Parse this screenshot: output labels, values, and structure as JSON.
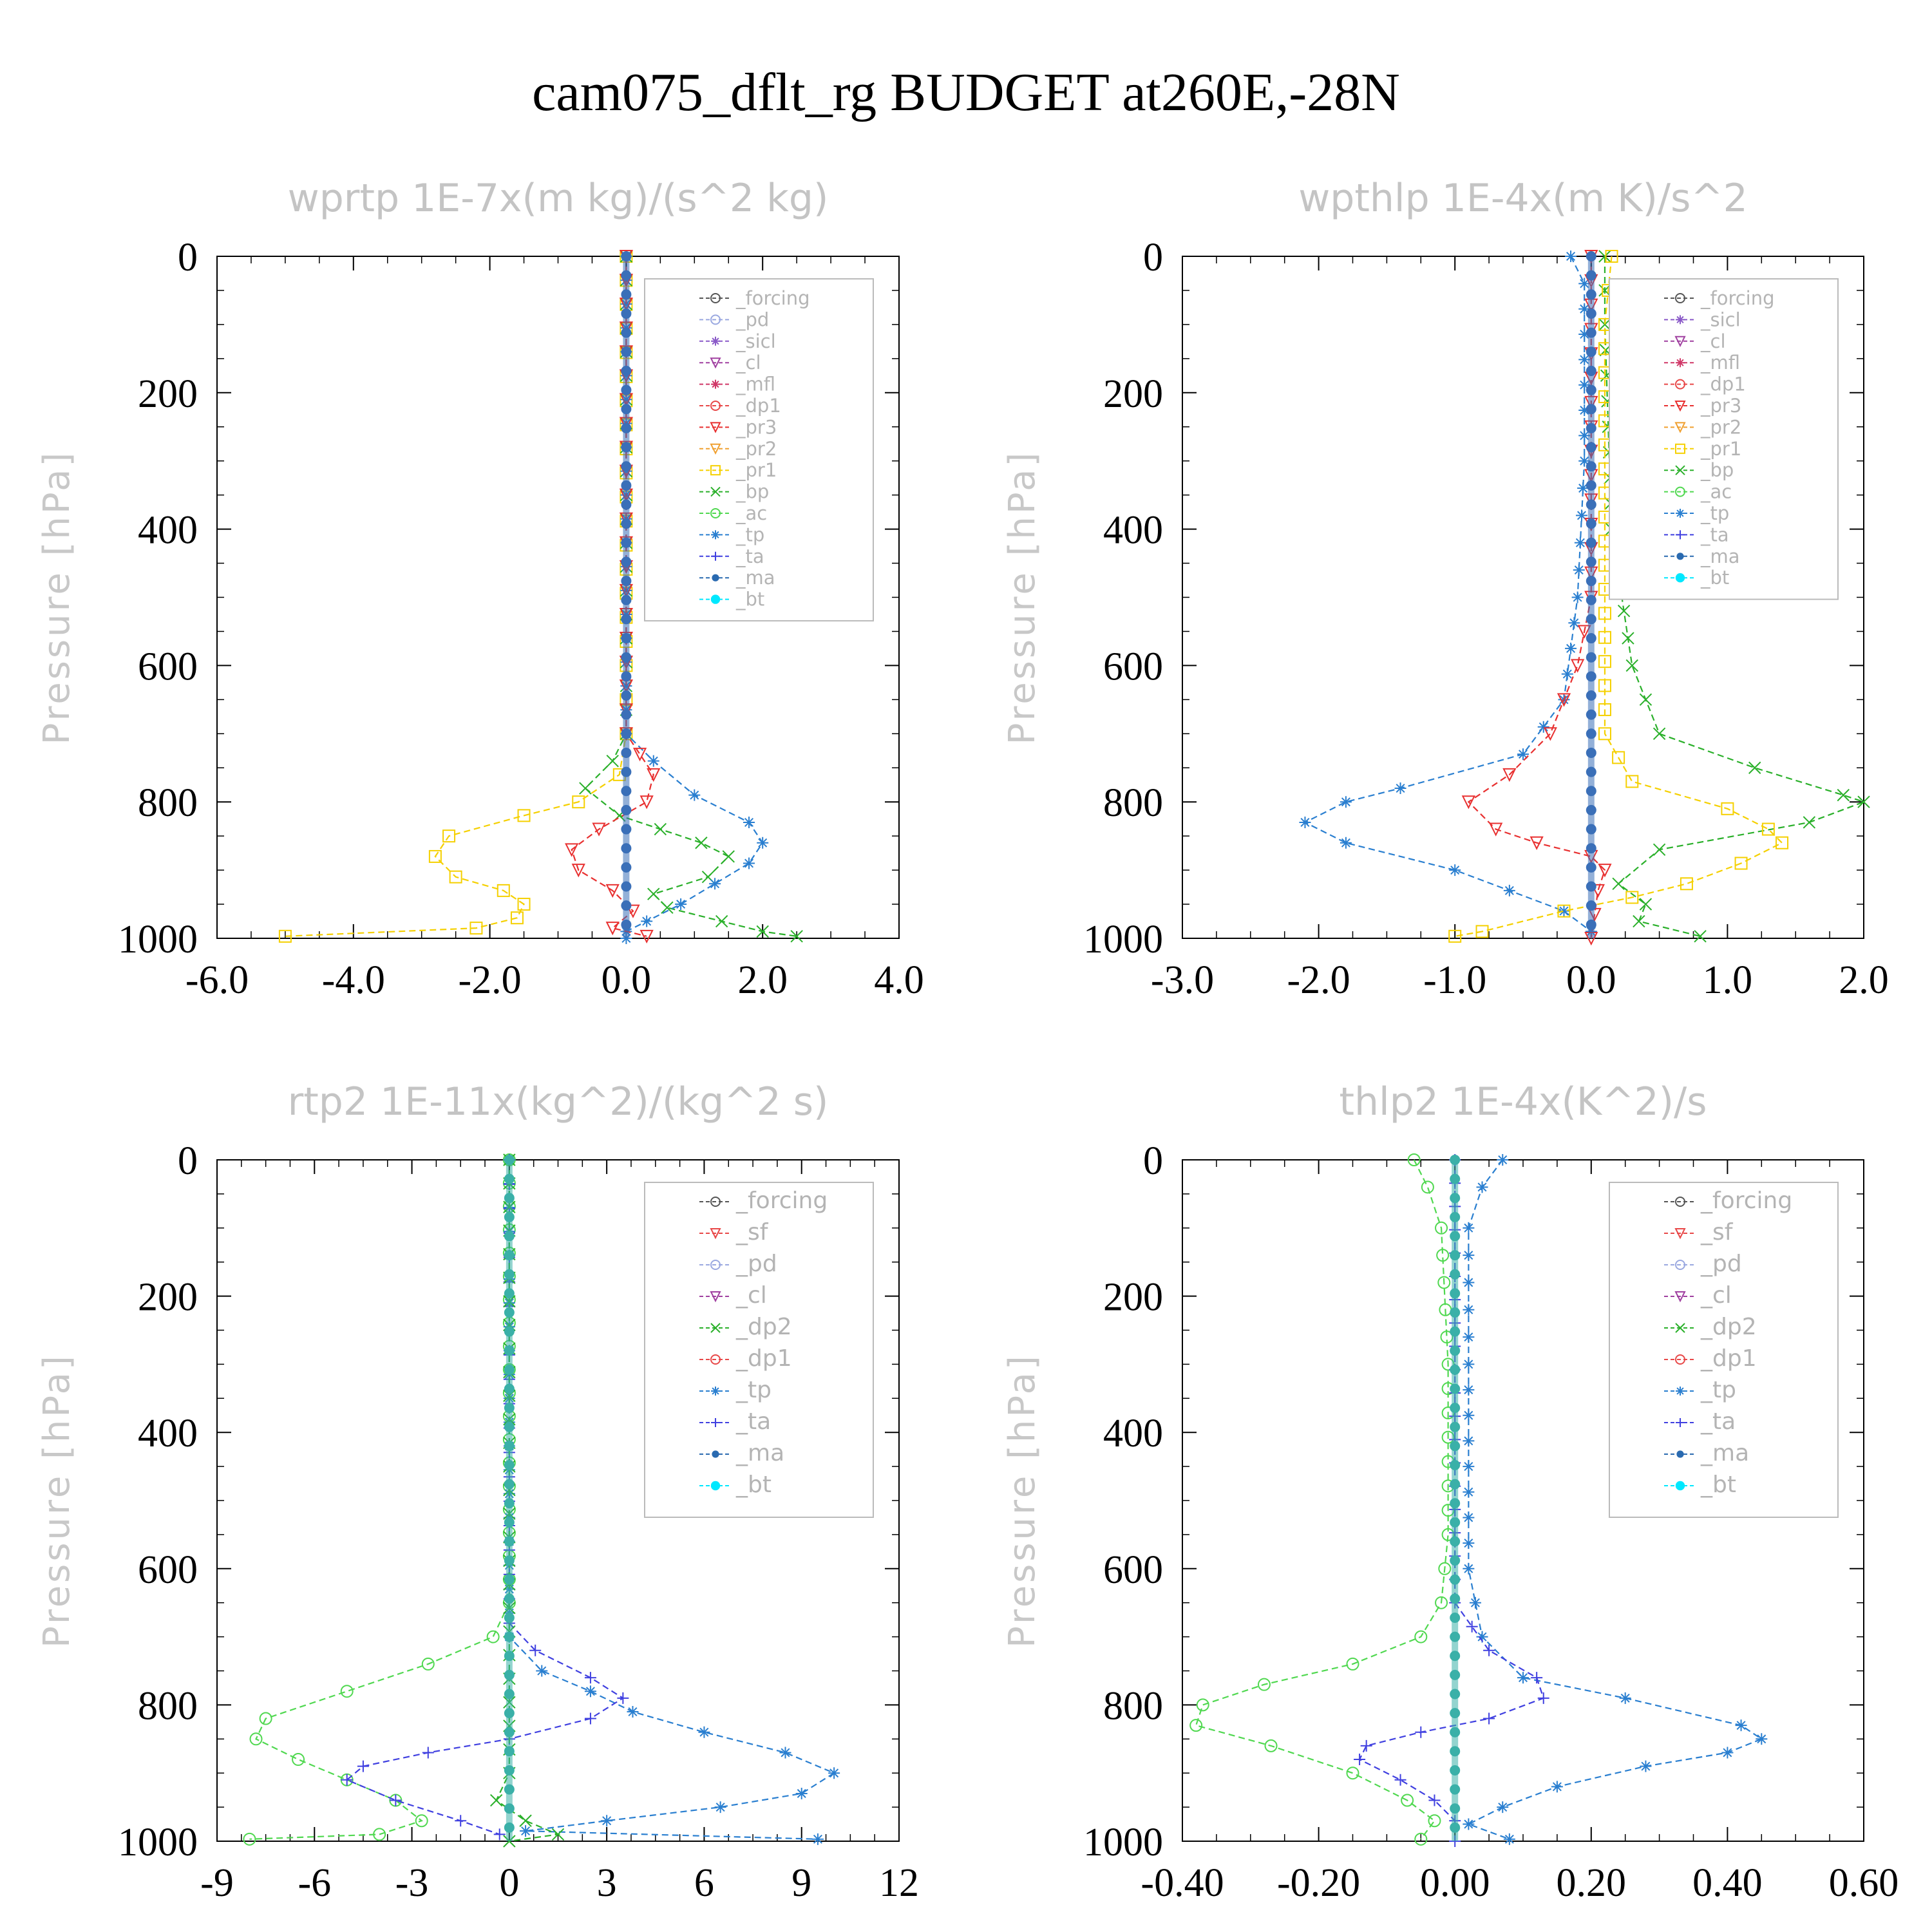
{
  "title": "cam075_dflt_rg  BUDGET at260E,-28N",
  "chart_data": [
    {
      "type": "line",
      "title": "wprtp  1E-7x(m kg)/(s^2 kg)",
      "ylabel": "Pressure [hPa]",
      "xlabel": "",
      "xlim": [
        -6.0,
        4.0
      ],
      "ylim": [
        1000,
        0
      ],
      "xticks": [
        "-6.0",
        "-4.0",
        "-2.0",
        "0.0",
        "2.0",
        "4.0"
      ],
      "yticks": [
        "0",
        "200",
        "400",
        "600",
        "800",
        "1000"
      ],
      "legend_position": "top-right",
      "legend": [
        "_forcing",
        "_pd",
        "_sicl",
        "_cl",
        "_mfl",
        "_dp1",
        "_pr3",
        "_pr2",
        "_pr1",
        "_bp",
        "_ac",
        "_tp",
        "_ta",
        "_ma",
        "_bt"
      ],
      "series": [
        {
          "name": "_pr1",
          "color": "#f5d000",
          "marker": "square",
          "points": [
            [
              0,
              0
            ],
            [
              0,
              600
            ],
            [
              0,
              700
            ],
            [
              -0.1,
              760
            ],
            [
              -0.7,
              800
            ],
            [
              -1.5,
              820
            ],
            [
              -2.6,
              850
            ],
            [
              -2.8,
              880
            ],
            [
              -2.5,
              910
            ],
            [
              -1.8,
              930
            ],
            [
              -1.5,
              950
            ],
            [
              -1.6,
              970
            ],
            [
              -2.2,
              985
            ],
            [
              -5.0,
              997
            ]
          ]
        },
        {
          "name": "_bp",
          "color": "#2ab02a",
          "marker": "x",
          "points": [
            [
              0,
              0
            ],
            [
              0,
              700
            ],
            [
              -0.2,
              740
            ],
            [
              -0.6,
              780
            ],
            [
              -0.1,
              820
            ],
            [
              0.5,
              840
            ],
            [
              1.1,
              860
            ],
            [
              1.5,
              880
            ],
            [
              1.2,
              910
            ],
            [
              0.4,
              935
            ],
            [
              0.6,
              955
            ],
            [
              1.4,
              975
            ],
            [
              2.0,
              990
            ],
            [
              2.5,
              997
            ]
          ]
        },
        {
          "name": "_tp",
          "color": "#2a7fd0",
          "marker": "asterisk",
          "points": [
            [
              0,
              0
            ],
            [
              0,
              700
            ],
            [
              0.4,
              740
            ],
            [
              1.0,
              790
            ],
            [
              1.8,
              830
            ],
            [
              2.0,
              860
            ],
            [
              1.8,
              890
            ],
            [
              1.3,
              920
            ],
            [
              0.8,
              950
            ],
            [
              0.3,
              975
            ],
            [
              0,
              990
            ],
            [
              0,
              1000
            ]
          ]
        },
        {
          "name": "_pr3",
          "color": "#e83030",
          "marker": "triangle-down",
          "points": [
            [
              0,
              0
            ],
            [
              0,
              700
            ],
            [
              0.2,
              730
            ],
            [
              0.4,
              760
            ],
            [
              0.3,
              800
            ],
            [
              -0.4,
              840
            ],
            [
              -0.8,
              870
            ],
            [
              -0.7,
              900
            ],
            [
              -0.2,
              930
            ],
            [
              0.1,
              960
            ],
            [
              -0.2,
              985
            ],
            [
              0.3,
              997
            ]
          ]
        },
        {
          "name": "_bt",
          "color": "#3a6fb8",
          "marker": "dot",
          "points": [
            [
              0,
              0
            ],
            [
              0,
              1000
            ]
          ]
        }
      ]
    },
    {
      "type": "line",
      "title": "wpthlp  1E-4x(m K)/s^2",
      "ylabel": "Pressure [hPa]",
      "xlabel": "",
      "xlim": [
        -3.0,
        2.0
      ],
      "ylim": [
        1000,
        0
      ],
      "xticks": [
        "-3.0",
        "-2.0",
        "-1.0",
        "0.0",
        "1.0",
        "2.0"
      ],
      "yticks": [
        "0",
        "200",
        "400",
        "600",
        "800",
        "1000"
      ],
      "legend_position": "top-right",
      "legend": [
        "_forcing",
        "_sicl",
        "_cl",
        "_mfl",
        "_dp1",
        "_pr3",
        "_pr2",
        "_pr1",
        "_bp",
        "_ac",
        "_tp",
        "_ta",
        "_ma",
        "_bt"
      ],
      "series": [
        {
          "name": "_tp",
          "color": "#2a7fd0",
          "marker": "asterisk",
          "points": [
            [
              -0.15,
              0
            ],
            [
              -0.05,
              40
            ],
            [
              -0.05,
              300
            ],
            [
              -0.1,
              500
            ],
            [
              -0.2,
              650
            ],
            [
              -0.5,
              730
            ],
            [
              -1.4,
              780
            ],
            [
              -1.8,
              800
            ],
            [
              -2.1,
              830
            ],
            [
              -1.8,
              860
            ],
            [
              -1.0,
              900
            ],
            [
              -0.6,
              930
            ],
            [
              -0.2,
              960
            ],
            [
              0,
              990
            ]
          ]
        },
        {
          "name": "_bp",
          "color": "#2ab02a",
          "marker": "x",
          "points": [
            [
              0.1,
              0
            ],
            [
              0.1,
              100
            ],
            [
              0.15,
              400
            ],
            [
              0.3,
              600
            ],
            [
              0.5,
              700
            ],
            [
              1.2,
              750
            ],
            [
              1.85,
              790
            ],
            [
              2.0,
              800
            ],
            [
              1.6,
              830
            ],
            [
              0.5,
              870
            ],
            [
              0.2,
              920
            ],
            [
              0.4,
              950
            ],
            [
              0.35,
              975
            ],
            [
              0.8,
              997
            ]
          ]
        },
        {
          "name": "_pr1",
          "color": "#f5d000",
          "marker": "square",
          "points": [
            [
              0.15,
              0
            ],
            [
              0.1,
              100
            ],
            [
              0.1,
              700
            ],
            [
              0.3,
              770
            ],
            [
              1.0,
              810
            ],
            [
              1.3,
              840
            ],
            [
              1.4,
              860
            ],
            [
              1.1,
              890
            ],
            [
              0.7,
              920
            ],
            [
              0.3,
              940
            ],
            [
              -0.2,
              960
            ],
            [
              -0.8,
              990
            ],
            [
              -1.0,
              997
            ]
          ]
        },
        {
          "name": "_pr3",
          "color": "#e83030",
          "marker": "triangle-down",
          "points": [
            [
              0,
              0
            ],
            [
              0,
              500
            ],
            [
              -0.1,
              600
            ],
            [
              -0.3,
              700
            ],
            [
              -0.6,
              760
            ],
            [
              -0.9,
              800
            ],
            [
              -0.7,
              840
            ],
            [
              -0.4,
              860
            ],
            [
              0,
              880
            ],
            [
              0.1,
              900
            ],
            [
              0.05,
              930
            ],
            [
              0,
              1000
            ]
          ]
        },
        {
          "name": "_bt",
          "color": "#3a6fb8",
          "marker": "dot",
          "points": [
            [
              0,
              0
            ],
            [
              0,
              1000
            ]
          ]
        }
      ]
    },
    {
      "type": "line",
      "title": "rtp2  1E-11x(kg^2)/(kg^2 s)",
      "ylabel": "Pressure [hPa]",
      "xlabel": "",
      "xlim": [
        -9,
        12
      ],
      "ylim": [
        1000,
        0
      ],
      "xticks": [
        "-9",
        "-6",
        "-3",
        "0",
        "3",
        "6",
        "9",
        "12"
      ],
      "yticks": [
        "0",
        "200",
        "400",
        "600",
        "800",
        "1000"
      ],
      "legend_position": "top-right",
      "legend": [
        "_forcing",
        "_sf",
        "_pd",
        "_cl",
        "_dp2",
        "_dp1",
        "_tp",
        "_ta",
        "_ma",
        "_bt"
      ],
      "series": [
        {
          "name": "_dp1",
          "color": "#50d850",
          "marker": "circle",
          "points": [
            [
              0,
              0
            ],
            [
              0,
              650
            ],
            [
              -0.5,
              700
            ],
            [
              -2.5,
              740
            ],
            [
              -5.0,
              780
            ],
            [
              -7.5,
              820
            ],
            [
              -7.8,
              850
            ],
            [
              -6.5,
              880
            ],
            [
              -5.0,
              910
            ],
            [
              -3.5,
              940
            ],
            [
              -2.7,
              970
            ],
            [
              -4.0,
              990
            ],
            [
              -8.0,
              997
            ]
          ]
        },
        {
          "name": "_tp",
          "color": "#2a7fd0",
          "marker": "asterisk",
          "points": [
            [
              0,
              0
            ],
            [
              0,
              700
            ],
            [
              1.0,
              750
            ],
            [
              2.5,
              780
            ],
            [
              3.8,
              810
            ],
            [
              6.0,
              840
            ],
            [
              8.5,
              870
            ],
            [
              10.0,
              900
            ],
            [
              9.0,
              930
            ],
            [
              6.5,
              950
            ],
            [
              3.0,
              970
            ],
            [
              0.5,
              985
            ],
            [
              9.5,
              997
            ]
          ]
        },
        {
          "name": "_ta",
          "color": "#4040e0",
          "marker": "plus",
          "points": [
            [
              0,
              0
            ],
            [
              0,
              680
            ],
            [
              0.8,
              720
            ],
            [
              2.5,
              760
            ],
            [
              3.5,
              790
            ],
            [
              2.5,
              820
            ],
            [
              0,
              850
            ],
            [
              -2.5,
              870
            ],
            [
              -4.5,
              890
            ],
            [
              -5.0,
              910
            ],
            [
              -3.5,
              940
            ],
            [
              -1.5,
              970
            ],
            [
              -0.3,
              990
            ]
          ]
        },
        {
          "name": "_dp2",
          "color": "#2ab02a",
          "marker": "x",
          "points": [
            [
              0,
              0
            ],
            [
              0,
              900
            ],
            [
              -0.4,
              940
            ],
            [
              0.5,
              970
            ],
            [
              1.5,
              990
            ],
            [
              0,
              1000
            ]
          ]
        },
        {
          "name": "_bt",
          "color": "#3ab0a8",
          "marker": "dot",
          "points": [
            [
              0,
              0
            ],
            [
              0,
              1000
            ]
          ]
        }
      ]
    },
    {
      "type": "line",
      "title": "thlp2  1E-4x(K^2)/s",
      "ylabel": "Pressure [hPa]",
      "xlabel": "",
      "xlim": [
        -0.4,
        0.6
      ],
      "ylim": [
        1000,
        0
      ],
      "xticks": [
        "-0.40",
        "-0.20",
        "0.00",
        "0.20",
        "0.40",
        "0.60"
      ],
      "yticks": [
        "0",
        "200",
        "400",
        "600",
        "800",
        "1000"
      ],
      "legend_position": "top-right",
      "legend": [
        "_forcing",
        "_sf",
        "_pd",
        "_cl",
        "_dp2",
        "_dp1",
        "_tp",
        "_ta",
        "_ma",
        "_bt"
      ],
      "series": [
        {
          "name": "_dp1",
          "color": "#50d850",
          "marker": "circle",
          "points": [
            [
              -0.06,
              0
            ],
            [
              -0.04,
              40
            ],
            [
              -0.02,
              100
            ],
            [
              -0.01,
              300
            ],
            [
              -0.01,
              550
            ],
            [
              -0.02,
              650
            ],
            [
              -0.05,
              700
            ],
            [
              -0.15,
              740
            ],
            [
              -0.28,
              770
            ],
            [
              -0.37,
              800
            ],
            [
              -0.38,
              830
            ],
            [
              -0.27,
              860
            ],
            [
              -0.15,
              900
            ],
            [
              -0.07,
              940
            ],
            [
              -0.03,
              970
            ],
            [
              -0.05,
              997
            ]
          ]
        },
        {
          "name": "_tp",
          "color": "#2a7fd0",
          "marker": "asterisk",
          "points": [
            [
              0.07,
              0
            ],
            [
              0.04,
              40
            ],
            [
              0.02,
              100
            ],
            [
              0.02,
              300
            ],
            [
              0.02,
              600
            ],
            [
              0.04,
              700
            ],
            [
              0.1,
              760
            ],
            [
              0.25,
              790
            ],
            [
              0.42,
              830
            ],
            [
              0.45,
              850
            ],
            [
              0.4,
              870
            ],
            [
              0.28,
              890
            ],
            [
              0.15,
              920
            ],
            [
              0.07,
              950
            ],
            [
              0.02,
              975
            ],
            [
              0.08,
              997
            ]
          ]
        },
        {
          "name": "_ta",
          "color": "#4040e0",
          "marker": "plus",
          "points": [
            [
              0,
              0
            ],
            [
              0,
              650
            ],
            [
              0.05,
              720
            ],
            [
              0.12,
              760
            ],
            [
              0.13,
              790
            ],
            [
              0.05,
              820
            ],
            [
              -0.05,
              840
            ],
            [
              -0.13,
              860
            ],
            [
              -0.14,
              880
            ],
            [
              -0.08,
              910
            ],
            [
              -0.03,
              940
            ],
            [
              0,
              970
            ],
            [
              0,
              1000
            ]
          ]
        },
        {
          "name": "_bt",
          "color": "#3ab0a8",
          "marker": "dot",
          "points": [
            [
              0,
              0
            ],
            [
              0,
              1000
            ]
          ]
        }
      ]
    }
  ]
}
